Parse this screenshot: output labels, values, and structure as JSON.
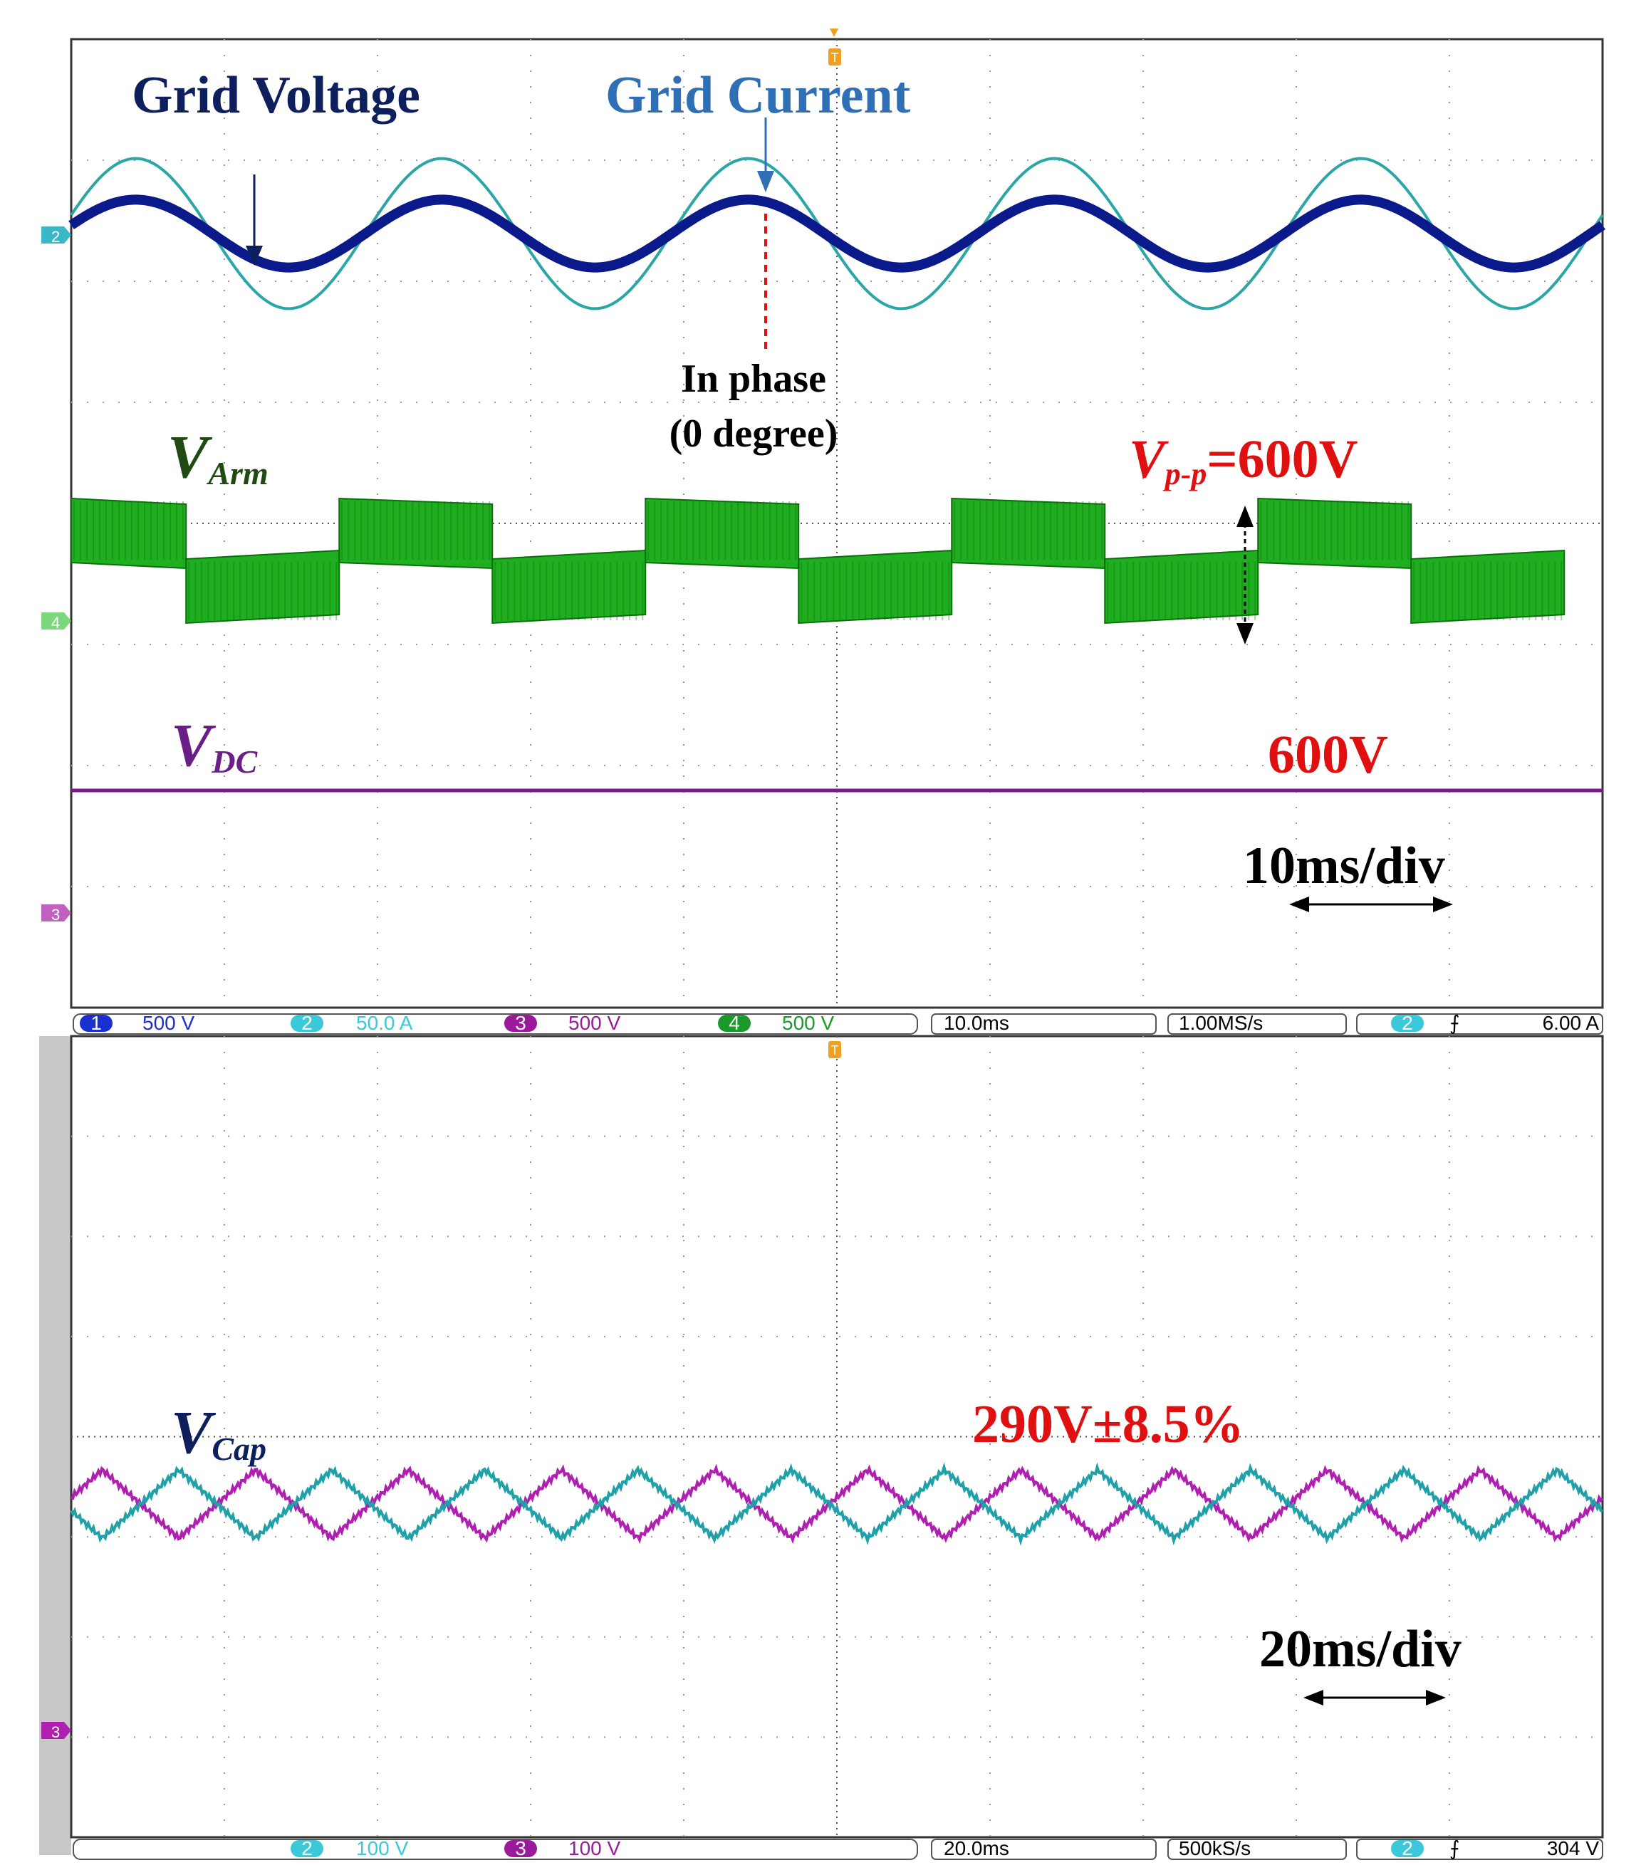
{
  "colors": {
    "grid_voltage": "#0a1a8a",
    "grid_current": "#2aa6a6",
    "arm": "#1fae1f",
    "arm_dark": "#0c6e0c",
    "dc": "#7b1a8c",
    "cap_a": "#b020b0",
    "cap_b": "#20a0a8",
    "highlight": "#e01010",
    "label_dark": "#0d1f5c",
    "label_current": "#2f6fb5",
    "label_arm": "#1f4a12",
    "label_dc": "#6a1f86"
  },
  "top_panel": {
    "annotations": {
      "grid_voltage": "Grid Voltage",
      "grid_current": "Grid Current",
      "in_phase_line1": "In phase",
      "in_phase_line2": "(0 degree)",
      "v_arm_main": "V",
      "v_arm_sub": "Arm",
      "v_pp_main": "V",
      "v_pp_sub": "p-p",
      "v_pp_value": "=600V",
      "v_dc_main": "V",
      "v_dc_sub": "DC",
      "v_dc_value": "600V",
      "timebase": "10ms/div"
    },
    "channel_markers": [
      "2",
      "4",
      "3"
    ],
    "status_bar": {
      "ch1_num": "1",
      "ch1_scale": "500 V",
      "ch2_num": "2",
      "ch2_scale": "50.0 A",
      "ch3_num": "3",
      "ch3_scale": "500 V",
      "ch4_num": "4",
      "ch4_scale": "500 V",
      "time_div": "10.0ms",
      "sample_rate": "1.00MS/s",
      "trig_ch": "2",
      "trig_level": "6.00 A"
    }
  },
  "bottom_panel": {
    "annotations": {
      "v_cap_main": "V",
      "v_cap_sub": "Cap",
      "v_cap_value": "290V±8.5%",
      "timebase": "20ms/div"
    },
    "channel_markers": [
      "3"
    ],
    "status_bar": {
      "ch2_num": "2",
      "ch2_scale": "100 V",
      "ch3_num": "3",
      "ch3_scale": "100 V",
      "time_div": "20.0ms",
      "sample_rate": "500kS/s",
      "trig_ch": "2",
      "trig_level": "304 V"
    }
  },
  "chart_data": [
    {
      "type": "line",
      "x_unit": "ms",
      "x_range": [
        0,
        100
      ],
      "series": [
        {
          "name": "Grid Voltage",
          "frequency_hz": 50,
          "amplitude_div": 0.28,
          "offset_div": 0
        },
        {
          "name": "Grid Current",
          "frequency_hz": 50,
          "amplitude_div": 0.62,
          "offset_div": 0
        },
        {
          "name": "VArm",
          "type": "square",
          "frequency_hz": 50,
          "peak_to_peak_V": 600,
          "band_div": 0.8
        },
        {
          "name": "VDC",
          "type": "constant",
          "value_V": 600
        }
      ]
    },
    {
      "type": "line",
      "x_unit": "ms",
      "x_range": [
        0,
        200
      ],
      "series": [
        {
          "name": "VCap",
          "mean_V": 290,
          "ripple_pct": 8.5,
          "frequency_hz": 50
        },
        {
          "name": "VCap",
          "mean_V": 290,
          "ripple_pct": 8.5,
          "frequency_hz": 50
        }
      ]
    }
  ]
}
